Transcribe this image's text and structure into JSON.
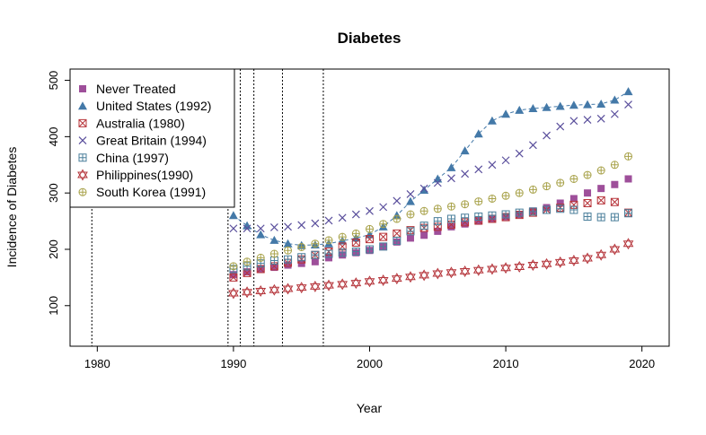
{
  "chart_data": {
    "type": "scatter",
    "title": "Diabetes",
    "xlabel": "Year",
    "ylabel": "Incidence of Diabetes",
    "xlim": [
      1978,
      2022
    ],
    "ylim": [
      28,
      520
    ],
    "xticks": [
      1980,
      1990,
      2000,
      2010,
      2020
    ],
    "yticks": [
      100,
      200,
      300,
      400,
      500
    ],
    "grid": false,
    "legend_position": "top-left",
    "vlines": [
      1979.6,
      1989.6,
      1990.5,
      1991.5,
      1993.6,
      1996.6
    ],
    "x": [
      1990,
      1991,
      1992,
      1993,
      1994,
      1995,
      1996,
      1997,
      1998,
      1999,
      2000,
      2001,
      2002,
      2003,
      2004,
      2005,
      2006,
      2007,
      2008,
      2009,
      2010,
      2011,
      2012,
      2013,
      2014,
      2015,
      2016,
      2017,
      2018,
      2019
    ],
    "series": [
      {
        "name": "Never Treated",
        "marker": "square",
        "color": "#9e4f9a",
        "values": [
          155,
          160,
          165,
          168,
          172,
          175,
          178,
          185,
          190,
          194,
          198,
          205,
          213,
          220,
          225,
          232,
          240,
          245,
          250,
          254,
          258,
          262,
          268,
          274,
          282,
          290,
          300,
          308,
          315,
          325
        ]
      },
      {
        "name": "United States (1992)",
        "marker": "triangle",
        "color": "#4479a8",
        "line": true,
        "start": 1990,
        "values": [
          260,
          242,
          226,
          216,
          210,
          207,
          208,
          210,
          215,
          220,
          226,
          240,
          260,
          285,
          305,
          325,
          345,
          375,
          405,
          428,
          440,
          447,
          450,
          452,
          454,
          456,
          457,
          458,
          465,
          480
        ]
      },
      {
        "name": "Australia (1980)",
        "marker": "box-x",
        "color": "#b7343a",
        "values": [
          150,
          158,
          165,
          170,
          176,
          182,
          190,
          196,
          205,
          212,
          218,
          222,
          228,
          234,
          238,
          240,
          244,
          248,
          251,
          254,
          257,
          261,
          265,
          270,
          274,
          279,
          282,
          287,
          284,
          265
        ]
      },
      {
        "name": "Great Britain (1994)",
        "marker": "x",
        "color": "#5a4f9c",
        "values": [
          237,
          237,
          237,
          239,
          240,
          243,
          246,
          251,
          256,
          262,
          268,
          275,
          286,
          298,
          308,
          318,
          326,
          334,
          342,
          350,
          358,
          370,
          385,
          402,
          418,
          428,
          430,
          432,
          440,
          457
        ]
      },
      {
        "name": "China (1997)",
        "marker": "box-plus",
        "color": "#4b7f9b",
        "values": [
          165,
          170,
          175,
          180,
          182,
          186,
          190,
          192,
          194,
          196,
          200,
          205,
          215,
          232,
          242,
          250,
          254,
          256,
          258,
          260,
          262,
          265,
          267,
          270,
          272,
          270,
          258,
          257,
          257,
          264
        ]
      },
      {
        "name": "Philippines(1990)",
        "marker": "star",
        "color": "#b5353b",
        "values": [
          122,
          124,
          126,
          128,
          130,
          132,
          134,
          136,
          138,
          140,
          143,
          145,
          148,
          151,
          154,
          157,
          159,
          161,
          163,
          165,
          167,
          169,
          172,
          174,
          177,
          180,
          184,
          190,
          200,
          210
        ]
      },
      {
        "name": "South Korea (1991)",
        "marker": "circle-plus",
        "color": "#a8a24a",
        "values": [
          170,
          178,
          185,
          192,
          198,
          204,
          210,
          216,
          222,
          228,
          236,
          245,
          254,
          262,
          268,
          272,
          276,
          280,
          285,
          290,
          295,
          300,
          306,
          312,
          318,
          325,
          332,
          340,
          350,
          365
        ]
      }
    ]
  }
}
